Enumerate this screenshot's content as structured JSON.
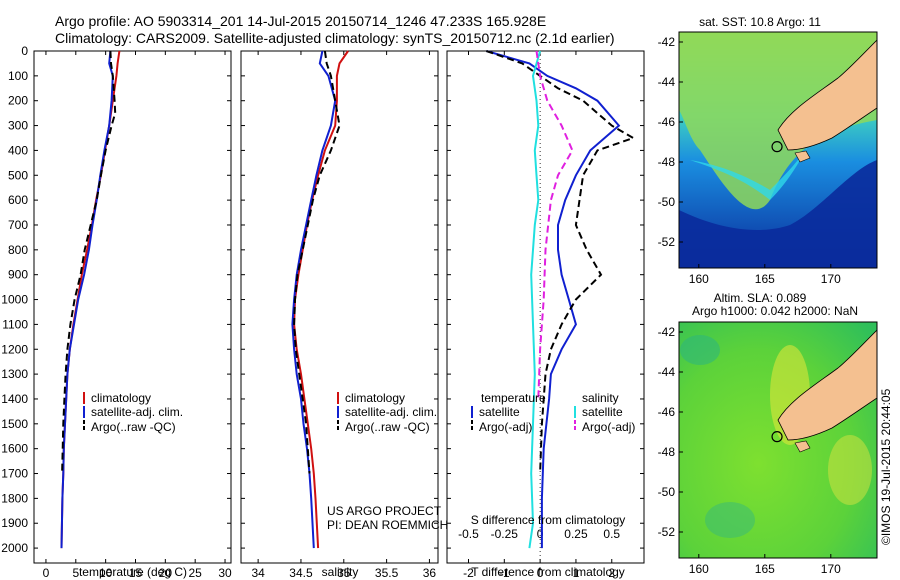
{
  "header": {
    "line1": "Argo profile: AO 5903314_201 14-Jul-2015 20150714_1246 47.233S 165.928E",
    "line2": "Climatology: CARS2009. Satellite-adjusted climatology: synTS_20150712.nc (2.1d earlier)"
  },
  "colors": {
    "climatology": "#d01010",
    "satellite": "#1020d0",
    "argo": "#000000",
    "sal_sat": "#20e0e0",
    "sal_argo": "#e020e0",
    "land": "#f4c090"
  },
  "credits": {
    "line1": "US ARGO PROJECT",
    "line2": "PI: DEAN ROEMMICH"
  },
  "watermark": "©IMOS 19-Jul-2015 20:44:05",
  "chart_data": [
    {
      "type": "line",
      "xlabel": "temperature (deg C)",
      "xlim": [
        -2,
        31
      ],
      "ylim": [
        2060,
        0
      ],
      "x_ticks": [
        0,
        5,
        10,
        15,
        20,
        25,
        30
      ],
      "y_ticks": [
        0,
        100,
        200,
        300,
        400,
        500,
        600,
        700,
        800,
        900,
        1000,
        1100,
        1200,
        1300,
        1400,
        1500,
        1600,
        1700,
        1800,
        1900,
        2000
      ],
      "legend": [
        "climatology",
        "satellite-adj. clim.",
        "Argo(..raw -QC)"
      ],
      "series": [
        {
          "name": "climatology",
          "style": "solid",
          "x": [
            12.3,
            12.0,
            11.8,
            11.2,
            10.6,
            9.9,
            9.2,
            8.4,
            7.7,
            6.9,
            6.0,
            5.3,
            4.6,
            4.0,
            3.6,
            3.4,
            3.2,
            3.0,
            2.9,
            2.75,
            2.6
          ],
          "y": [
            0,
            50,
            100,
            200,
            300,
            400,
            500,
            600,
            700,
            800,
            900,
            1000,
            1100,
            1200,
            1300,
            1400,
            1500,
            1600,
            1700,
            1800,
            2000
          ]
        },
        {
          "name": "satellite-adj. clim.",
          "style": "solid",
          "x": [
            10.8,
            10.6,
            11.2,
            11.0,
            10.6,
            9.8,
            9.1,
            8.5,
            7.8,
            7.2,
            6.4,
            5.4,
            4.7,
            4.0,
            3.6,
            3.4,
            3.2,
            3.0,
            2.9,
            2.75,
            2.6
          ],
          "y": [
            0,
            50,
            100,
            200,
            300,
            400,
            500,
            600,
            700,
            800,
            900,
            1000,
            1100,
            1200,
            1300,
            1400,
            1500,
            1600,
            1700,
            1800,
            2000
          ]
        },
        {
          "name": "Argo(..raw -QC)",
          "style": "dash",
          "x": [
            10.8,
            10.9,
            11.2,
            11.5,
            11.6,
            11.0,
            10.0,
            9.2,
            8.5,
            7.5,
            6.5,
            5.8,
            4.8,
            4.1,
            3.6,
            3.3,
            3.1,
            2.9,
            2.8,
            2.7
          ],
          "y": [
            0,
            50,
            100,
            200,
            250,
            300,
            400,
            500,
            600,
            700,
            800,
            900,
            1000,
            1100,
            1200,
            1300,
            1400,
            1500,
            1600,
            1700
          ]
        }
      ]
    },
    {
      "type": "line",
      "xlabel": "salinity",
      "xlim": [
        33.8,
        36.1
      ],
      "ylim": [
        2060,
        0
      ],
      "x_ticks": [
        34,
        34.5,
        35,
        35.5,
        36
      ],
      "legend": [
        "climatology",
        "satellite-adj. clim.",
        "Argo(..raw -QC)"
      ],
      "series": [
        {
          "name": "climatology",
          "style": "solid",
          "x": [
            35.05,
            34.95,
            34.92,
            34.92,
            34.9,
            34.78,
            34.7,
            34.63,
            34.57,
            34.52,
            34.47,
            34.43,
            34.42,
            34.45,
            34.5,
            34.54,
            34.58,
            34.62,
            34.65,
            34.67,
            34.7
          ],
          "y": [
            0,
            50,
            100,
            200,
            300,
            400,
            500,
            600,
            700,
            800,
            900,
            1000,
            1100,
            1200,
            1300,
            1400,
            1500,
            1600,
            1700,
            1800,
            2000
          ]
        },
        {
          "name": "satellite-adj. clim.",
          "style": "solid",
          "x": [
            34.75,
            34.72,
            34.82,
            34.9,
            34.85,
            34.75,
            34.68,
            34.62,
            34.56,
            34.5,
            34.45,
            34.42,
            34.4,
            34.42,
            34.45,
            34.5,
            34.53,
            34.57,
            34.6,
            34.62,
            34.65
          ],
          "y": [
            0,
            50,
            100,
            200,
            300,
            400,
            500,
            600,
            700,
            800,
            900,
            1000,
            1100,
            1200,
            1300,
            1400,
            1500,
            1600,
            1700,
            1800,
            2000
          ]
        },
        {
          "name": "Argo(..raw -QC)",
          "style": "dash",
          "x": [
            34.78,
            34.8,
            34.85,
            34.9,
            34.95,
            34.85,
            34.72,
            34.64,
            34.58,
            34.52,
            34.46,
            34.43,
            34.42,
            34.44,
            34.48,
            34.52,
            34.56,
            34.58,
            34.6
          ],
          "y": [
            0,
            50,
            100,
            200,
            300,
            400,
            500,
            600,
            700,
            800,
            900,
            1000,
            1100,
            1200,
            1300,
            1400,
            1500,
            1600,
            1700
          ]
        }
      ]
    },
    {
      "type": "line",
      "xlabel": "T difference from climatology",
      "sublabel": "S difference from climatology",
      "xlim": [
        -2.6,
        2.9
      ],
      "ylim": [
        2060,
        0
      ],
      "x_ticks": [
        -2,
        -1,
        0,
        1,
        2
      ],
      "s_ticks": [
        "-0.5",
        "-0.25",
        "0",
        "0.25",
        "0.5"
      ],
      "s_tick_pos": [
        -2,
        -1,
        0,
        1,
        2
      ],
      "legend_headers": [
        "temperature",
        "salinity"
      ],
      "legend": [
        "satellite",
        "Argo(-adj)",
        "satellite",
        "Argo(-adj)"
      ],
      "series": [
        {
          "name": "satellite",
          "style": "solid",
          "x": [
            -1.5,
            -0.3,
            0.2,
            1.0,
            1.6,
            2.2,
            1.4,
            1.0,
            0.7,
            0.5,
            0.5,
            0.6,
            0.8,
            1.0,
            0.6,
            0.3,
            0.25,
            0.1,
            0.05,
            0.05,
            0.05
          ],
          "y": [
            0,
            50,
            100,
            150,
            200,
            300,
            400,
            500,
            600,
            700,
            800,
            900,
            1000,
            1100,
            1200,
            1300,
            1400,
            1600,
            1800,
            1900,
            2000
          ]
        },
        {
          "name": "Argo(-adj)",
          "style": "dash",
          "x": [
            -1.5,
            -0.5,
            0.0,
            0.5,
            1.2,
            2.0,
            2.6,
            1.6,
            1.2,
            1.0,
            1.3,
            1.7,
            1.0,
            0.6,
            0.3,
            0.15,
            0.05,
            0.0
          ],
          "y": [
            0,
            50,
            100,
            150,
            200,
            300,
            350,
            400,
            500,
            700,
            800,
            900,
            1000,
            1100,
            1200,
            1300,
            1500,
            1700
          ]
        },
        {
          "name": "satellite",
          "style": "solid",
          "x": [
            0.0,
            -0.2,
            -0.1,
            -0.05,
            -0.15,
            -0.1,
            -0.05,
            -0.15,
            -0.2,
            -0.25,
            -0.2,
            -0.15,
            -0.2,
            -0.25,
            -0.2,
            -0.3
          ],
          "y": [
            0,
            100,
            200,
            300,
            400,
            500,
            600,
            700,
            800,
            900,
            1100,
            1300,
            1500,
            1700,
            1900,
            2000
          ]
        },
        {
          "name": "Argo(-adj)",
          "style": "dash",
          "x": [
            -0.1,
            0.0,
            0.2,
            0.6,
            0.9,
            0.5,
            0.3,
            0.15,
            0.1,
            0.0,
            -0.05
          ],
          "y": [
            0,
            100,
            200,
            300,
            400,
            500,
            600,
            800,
            1000,
            1200,
            1400
          ]
        }
      ]
    }
  ],
  "maps": [
    {
      "title": "sat. SST: 10.8 Argo: 11",
      "subtitle": "",
      "x_ticks": [
        "160",
        "165",
        "170"
      ],
      "y_ticks": [
        "-42",
        "-44",
        "-46",
        "-48",
        "-50",
        "-52"
      ],
      "xlim": [
        158.5,
        173.5
      ],
      "ylim": [
        -53.3,
        -41.5
      ],
      "argo_lon": 165.928,
      "argo_lat": -47.233
    },
    {
      "title": "Altim. SLA: 0.089",
      "subtitle": "Argo h1000: 0.042 h2000: NaN",
      "x_ticks": [
        "160",
        "165",
        "170"
      ],
      "y_ticks": [
        "-42",
        "-44",
        "-46",
        "-48",
        "-50",
        "-52"
      ],
      "xlim": [
        158.5,
        173.5
      ],
      "ylim": [
        -53.3,
        -41.5
      ],
      "argo_lon": 165.928,
      "argo_lat": -47.233
    }
  ]
}
